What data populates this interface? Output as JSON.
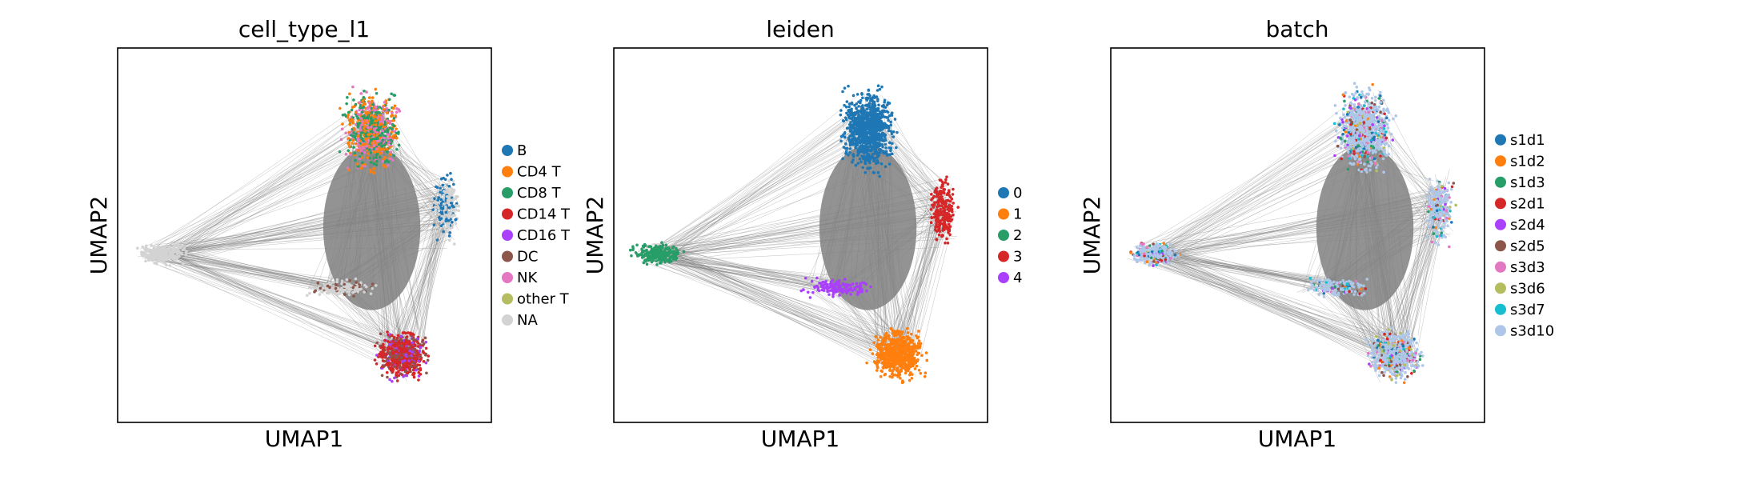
{
  "figure": {
    "panels": [
      {
        "title": "cell_type_l1",
        "xlabel": "UMAP1",
        "ylabel": "UMAP2",
        "legend": [
          {
            "label": "B",
            "color": "#1f77b4"
          },
          {
            "label": "CD4 T",
            "color": "#ff7f0e"
          },
          {
            "label": "CD8 T",
            "color": "#279e68"
          },
          {
            "label": "CD14 T",
            "color": "#d62728"
          },
          {
            "label": "CD16 T",
            "color": "#aa40fc"
          },
          {
            "label": "DC",
            "color": "#8c564b"
          },
          {
            "label": "NK",
            "color": "#e377c2"
          },
          {
            "label": "other T",
            "color": "#b5bd61"
          },
          {
            "label": "NA",
            "color": "#d3d3d3"
          }
        ]
      },
      {
        "title": "leiden",
        "xlabel": "UMAP1",
        "ylabel": "UMAP2",
        "legend": [
          {
            "label": "0",
            "color": "#1f77b4"
          },
          {
            "label": "1",
            "color": "#ff7f0e"
          },
          {
            "label": "2",
            "color": "#279e68"
          },
          {
            "label": "3",
            "color": "#d62728"
          },
          {
            "label": "4",
            "color": "#aa40fc"
          }
        ]
      },
      {
        "title": "batch",
        "xlabel": "UMAP1",
        "ylabel": "UMAP2",
        "legend": [
          {
            "label": "s1d1",
            "color": "#1f77b4"
          },
          {
            "label": "s1d2",
            "color": "#ff7f0e"
          },
          {
            "label": "s1d3",
            "color": "#279e68"
          },
          {
            "label": "s2d1",
            "color": "#d62728"
          },
          {
            "label": "s2d4",
            "color": "#aa40fc"
          },
          {
            "label": "s2d5",
            "color": "#8c564b"
          },
          {
            "label": "s3d3",
            "color": "#e377c2"
          },
          {
            "label": "s3d6",
            "color": "#b5bd61"
          },
          {
            "label": "s3d7",
            "color": "#17becf"
          },
          {
            "label": "s3d10",
            "color": "#aec7e8"
          }
        ]
      }
    ]
  },
  "chart_data": [
    {
      "type": "scatter",
      "title": "cell_type_l1",
      "xlabel": "UMAP1",
      "ylabel": "UMAP2",
      "legend_placement": "right",
      "grid": false,
      "ticks": false,
      "series": [
        {
          "name": "B",
          "color": "#1f77b4"
        },
        {
          "name": "CD4 T",
          "color": "#ff7f0e"
        },
        {
          "name": "CD8 T",
          "color": "#279e68"
        },
        {
          "name": "CD14 T",
          "color": "#d62728"
        },
        {
          "name": "CD16 T",
          "color": "#aa40fc"
        },
        {
          "name": "DC",
          "color": "#8c564b"
        },
        {
          "name": "NK",
          "color": "#e377c2"
        },
        {
          "name": "other T",
          "color": "#b5bd61"
        },
        {
          "name": "NA",
          "color": "#d3d3d3"
        }
      ],
      "edges_color": "#808080"
    },
    {
      "type": "scatter",
      "title": "leiden",
      "xlabel": "UMAP1",
      "ylabel": "UMAP2",
      "legend_placement": "right",
      "grid": false,
      "ticks": false,
      "series": [
        {
          "name": "0",
          "color": "#1f77b4"
        },
        {
          "name": "1",
          "color": "#ff7f0e"
        },
        {
          "name": "2",
          "color": "#279e68"
        },
        {
          "name": "3",
          "color": "#d62728"
        },
        {
          "name": "4",
          "color": "#aa40fc"
        }
      ],
      "edges_color": "#808080"
    },
    {
      "type": "scatter",
      "title": "batch",
      "xlabel": "UMAP1",
      "ylabel": "UMAP2",
      "legend_placement": "right",
      "grid": false,
      "ticks": false,
      "series": [
        {
          "name": "s1d1",
          "color": "#1f77b4"
        },
        {
          "name": "s1d2",
          "color": "#ff7f0e"
        },
        {
          "name": "s1d3",
          "color": "#279e68"
        },
        {
          "name": "s2d1",
          "color": "#d62728"
        },
        {
          "name": "s2d4",
          "color": "#aa40fc"
        },
        {
          "name": "s2d5",
          "color": "#8c564b"
        },
        {
          "name": "s3d3",
          "color": "#e377c2"
        },
        {
          "name": "s3d6",
          "color": "#b5bd61"
        },
        {
          "name": "s3d7",
          "color": "#17becf"
        },
        {
          "name": "s3d10",
          "color": "#aec7e8"
        }
      ],
      "edges_color": "#808080"
    }
  ]
}
